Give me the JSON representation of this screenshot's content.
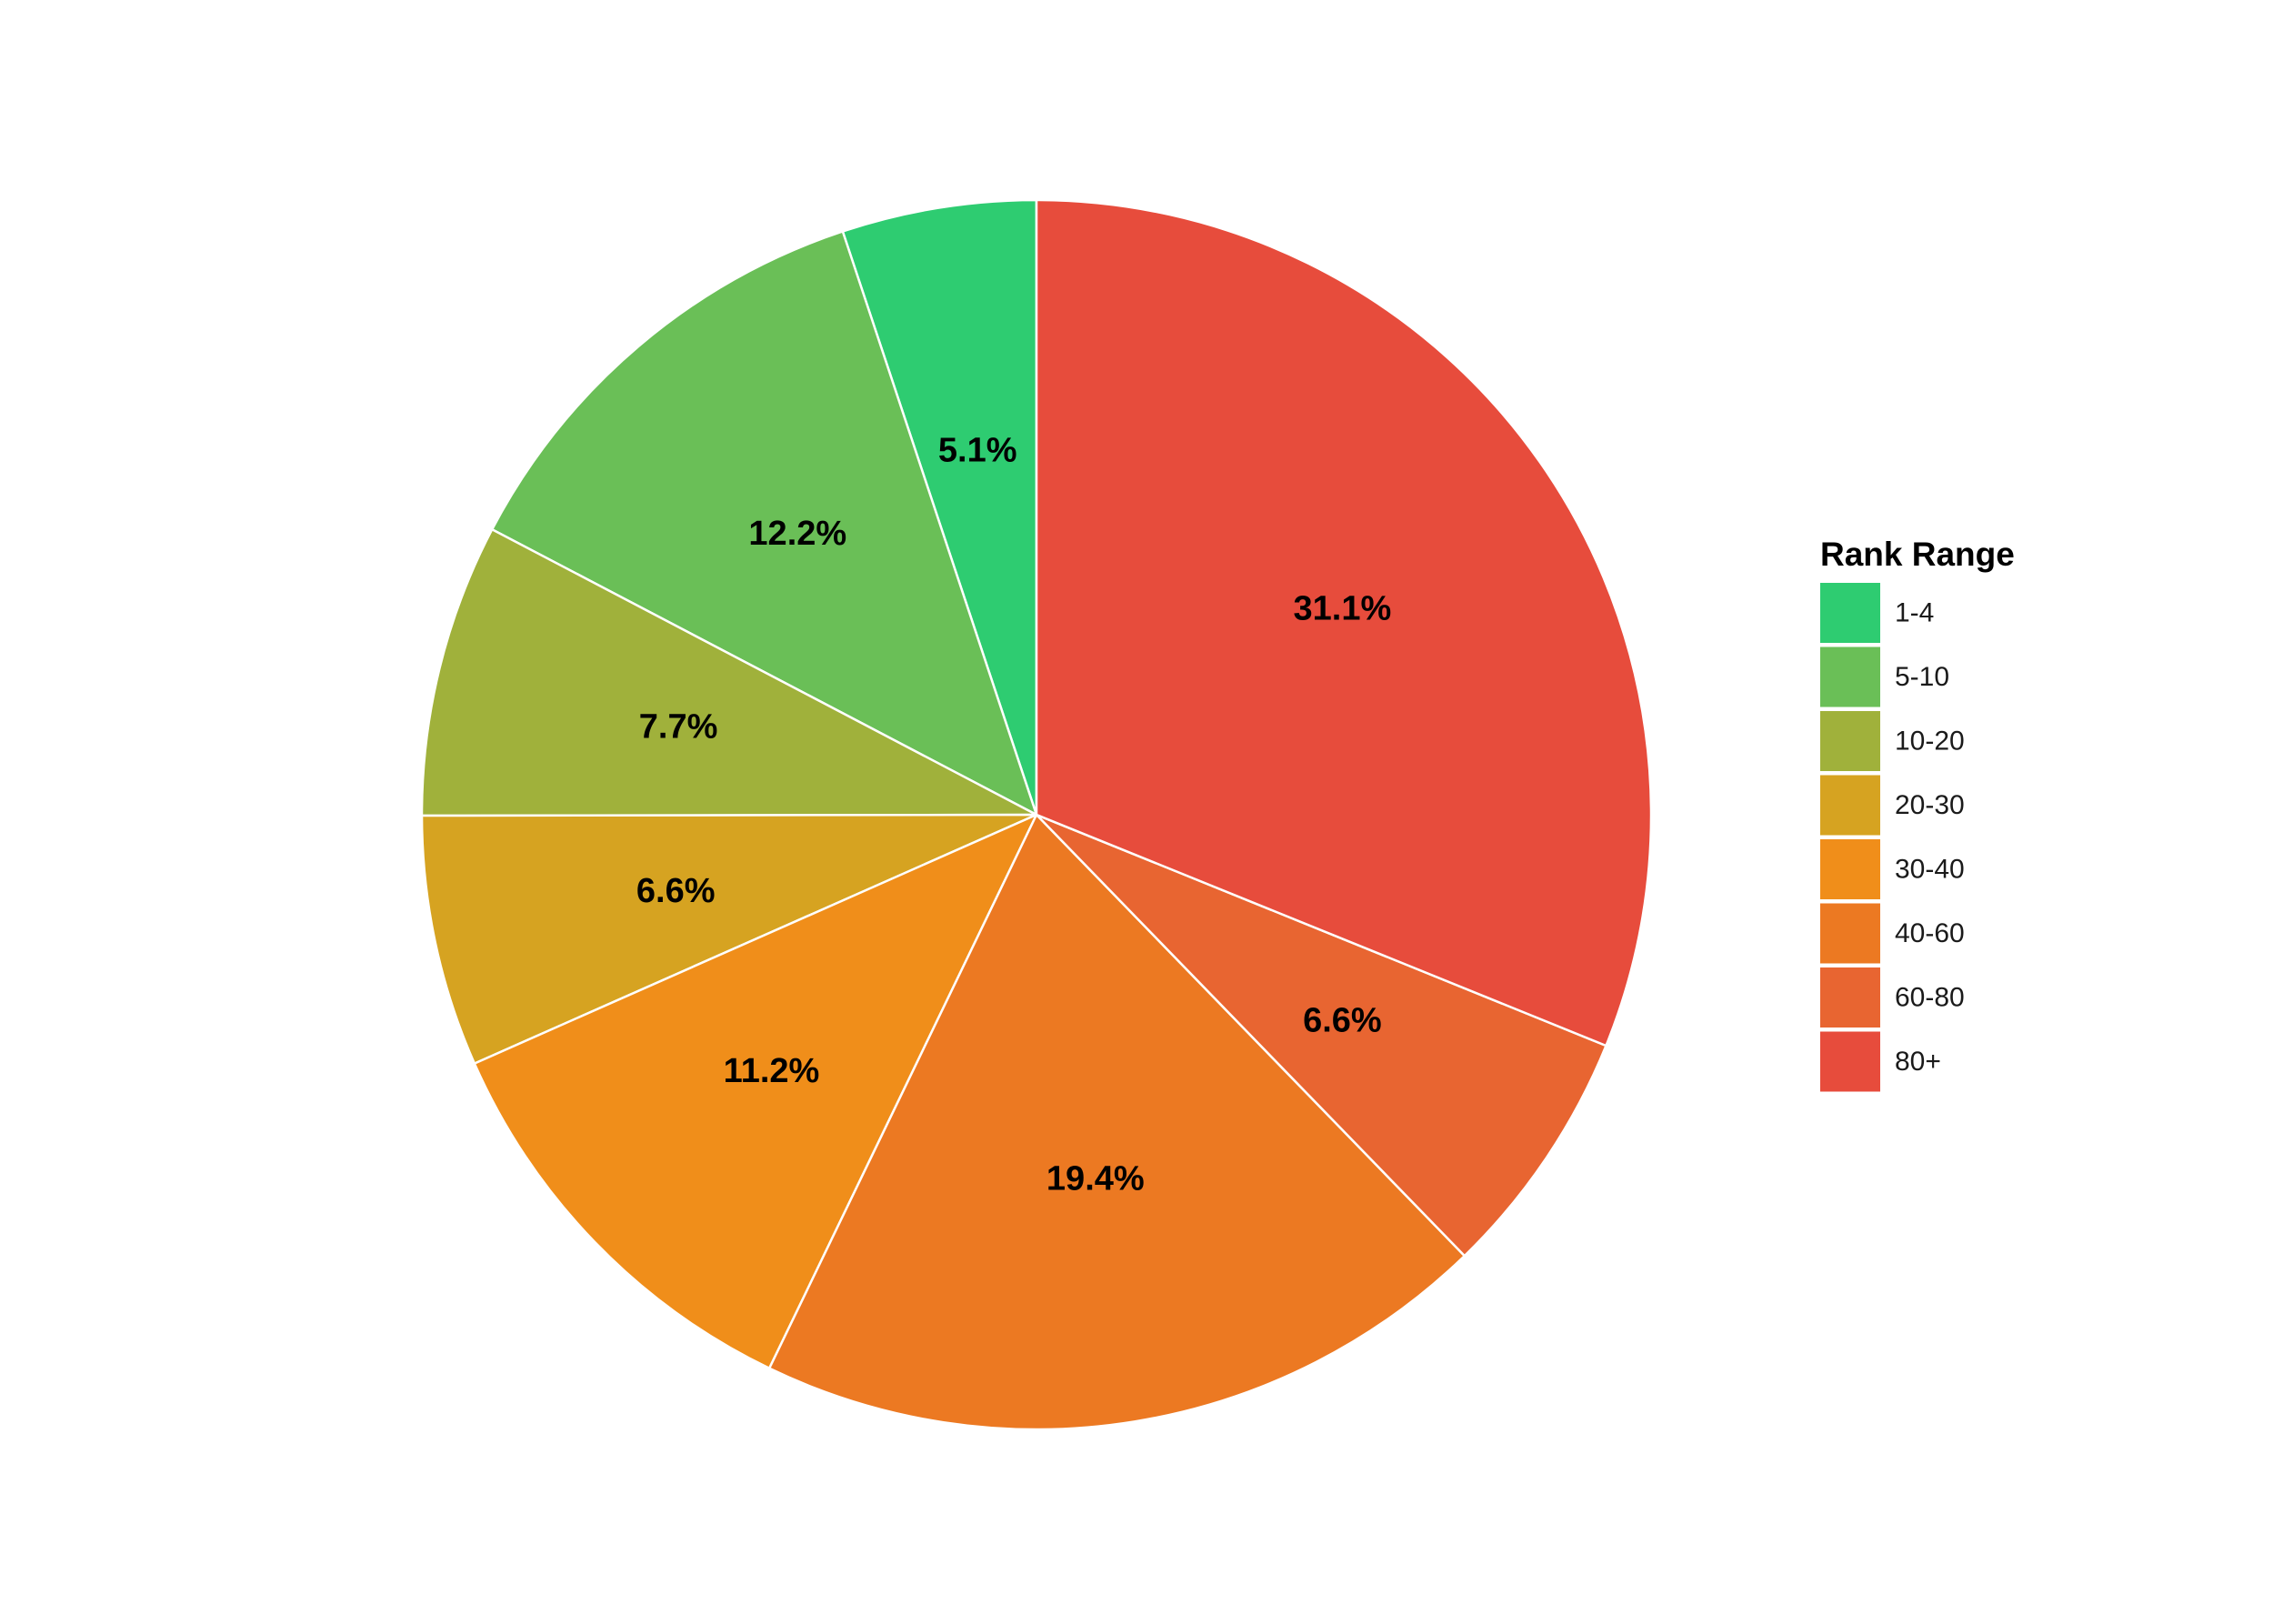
{
  "chart_data": {
    "type": "pie",
    "legend_title": "Rank Range",
    "legend_position": "right",
    "start_angle": "12 o'clock",
    "direction": "counterclockwise",
    "slices": [
      {
        "name": "1-4",
        "value": 5.1,
        "label": "5.1%",
        "color": "#2ECC71"
      },
      {
        "name": "5-10",
        "value": 12.2,
        "label": "12.2%",
        "color": "#6ABF57"
      },
      {
        "name": "10-20",
        "value": 7.7,
        "label": "7.7%",
        "color": "#A0B13B"
      },
      {
        "name": "20-30",
        "value": 6.6,
        "label": "6.6%",
        "color": "#D6A321"
      },
      {
        "name": "30-40",
        "value": 11.2,
        "label": "11.2%",
        "color": "#F08E1A"
      },
      {
        "name": "40-60",
        "value": 19.4,
        "label": "19.4%",
        "color": "#EC7922"
      },
      {
        "name": "60-80",
        "value": 6.6,
        "label": "6.6%",
        "color": "#E86531"
      },
      {
        "name": "80+",
        "value": 31.1,
        "label": "31.1%",
        "color": "#E74C3C"
      }
    ]
  }
}
